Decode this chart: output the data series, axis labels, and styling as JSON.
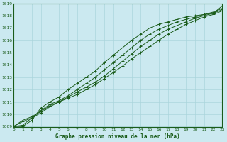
{
  "title": "Graphe pression niveau de la mer (hPa)",
  "bg_color": "#cbe9f0",
  "grid_color": "#aad5dc",
  "line_color": "#1a5c1a",
  "xlim": [
    0,
    23
  ],
  "ylim": [
    1009,
    1019
  ],
  "yticks": [
    1009,
    1010,
    1011,
    1012,
    1013,
    1014,
    1015,
    1016,
    1017,
    1018,
    1019
  ],
  "xticks": [
    0,
    1,
    2,
    3,
    4,
    5,
    6,
    7,
    8,
    9,
    10,
    11,
    12,
    13,
    14,
    15,
    16,
    17,
    18,
    19,
    20,
    21,
    22,
    23
  ],
  "series": [
    [
      1009.0,
      1009.5,
      1009.8,
      1010.2,
      1010.7,
      1011.0,
      1011.3,
      1011.6,
      1012.0,
      1012.4,
      1012.9,
      1013.4,
      1013.9,
      1014.5,
      1015.0,
      1015.5,
      1016.0,
      1016.5,
      1016.9,
      1017.3,
      1017.6,
      1017.9,
      1018.1,
      1018.4
    ],
    [
      1009.0,
      1009.4,
      1009.7,
      1010.1,
      1010.6,
      1011.0,
      1011.4,
      1011.8,
      1012.2,
      1012.6,
      1013.1,
      1013.7,
      1014.3,
      1014.9,
      1015.5,
      1016.0,
      1016.5,
      1016.9,
      1017.2,
      1017.5,
      1017.8,
      1018.0,
      1018.2,
      1018.5
    ],
    [
      1009.0,
      1009.1,
      1009.7,
      1010.3,
      1010.8,
      1011.1,
      1011.5,
      1012.0,
      1012.5,
      1013.0,
      1013.6,
      1014.2,
      1014.8,
      1015.4,
      1016.0,
      1016.5,
      1016.9,
      1017.2,
      1017.5,
      1017.7,
      1017.9,
      1018.1,
      1018.3,
      1018.6
    ],
    [
      1009.0,
      1009.0,
      1009.5,
      1010.5,
      1011.0,
      1011.4,
      1012.0,
      1012.5,
      1013.0,
      1013.5,
      1014.2,
      1014.8,
      1015.4,
      1016.0,
      1016.5,
      1017.0,
      1017.3,
      1017.5,
      1017.7,
      1017.9,
      1018.0,
      1018.1,
      1018.2,
      1018.8
    ]
  ]
}
